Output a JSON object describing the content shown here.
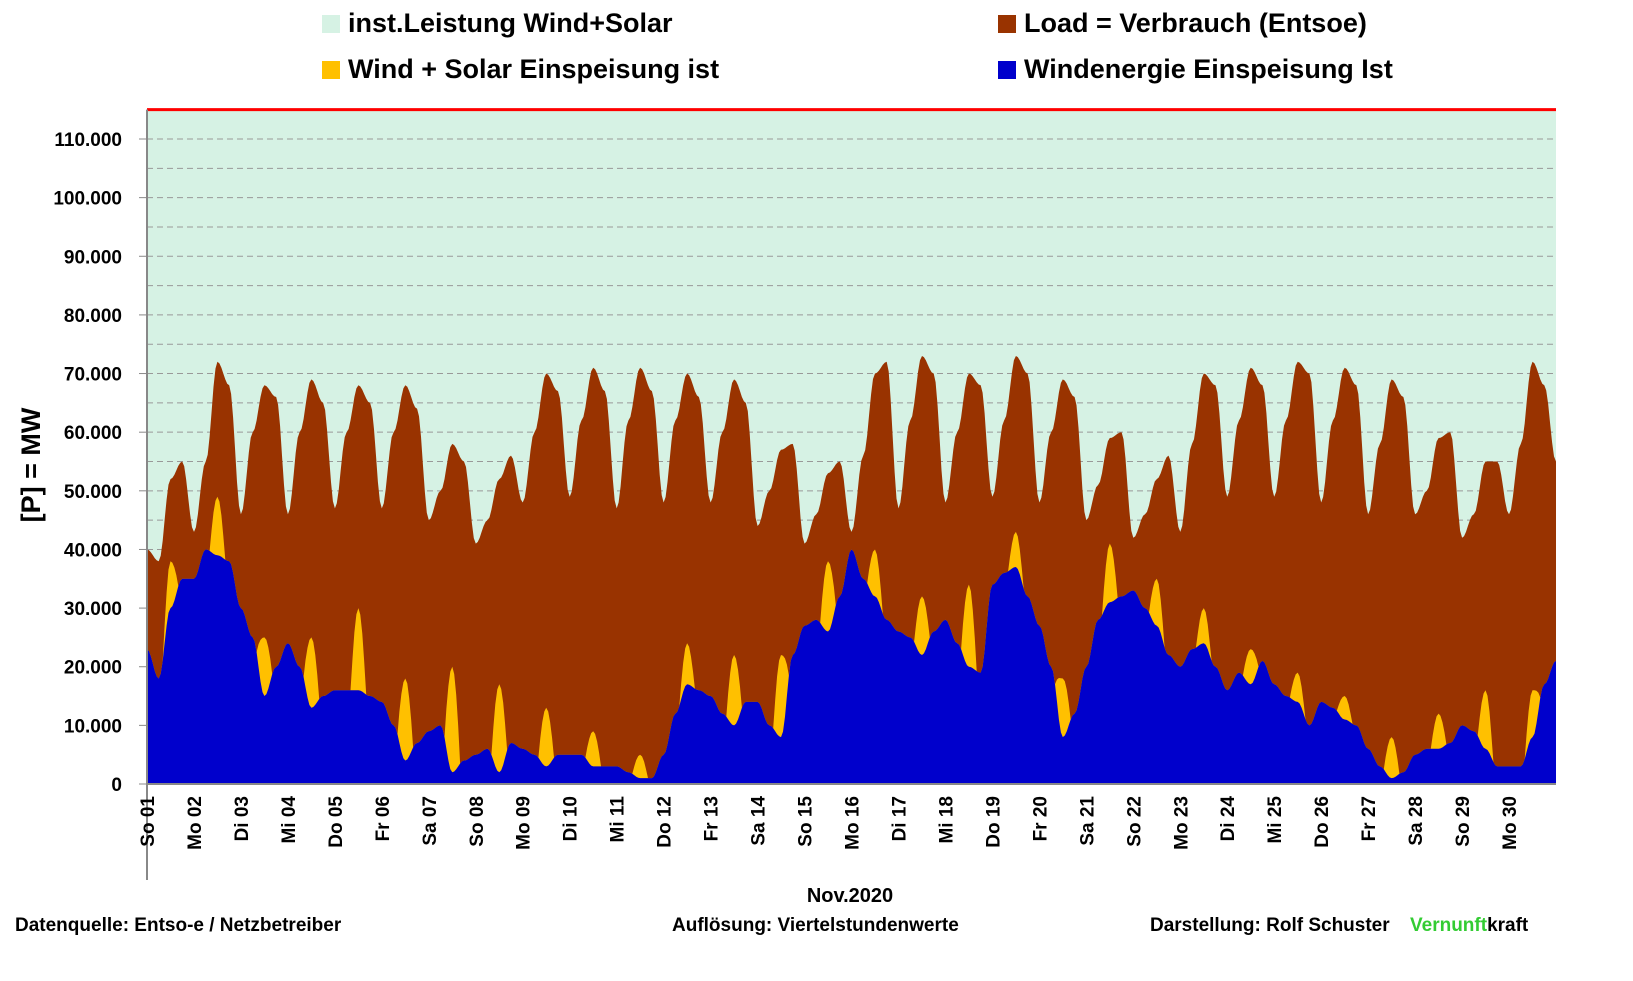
{
  "chart_data": {
    "type": "area",
    "legend": [
      {
        "label": "inst.Leistung Wind+Solar",
        "color": "#d6f2e4"
      },
      {
        "label": "Load =  Verbrauch (Entsoe)",
        "color": "#993300"
      },
      {
        "label": "Wind + Solar Einspeisung ist",
        "color": "#ffc000"
      },
      {
        "label": "Windenergie Einspeisung Ist",
        "color": "#0000cc"
      }
    ],
    "installed_color": "#ff0000",
    "installed_capacity_mw": 115000,
    "ylabel": "[P] = MW",
    "xlabel": "Nov.2020",
    "ylim": [
      0,
      115000
    ],
    "yticks": [
      0,
      10000,
      20000,
      30000,
      40000,
      50000,
      60000,
      70000,
      80000,
      90000,
      100000,
      110000
    ],
    "ytick_labels": [
      "0",
      "10.000",
      "20.000",
      "30.000",
      "40.000",
      "50.000",
      "60.000",
      "70.000",
      "80.000",
      "90.000",
      "100.000",
      "110.000"
    ],
    "xtick_labels": [
      "So 01",
      "Mo 02",
      "Di 03",
      "Mi 04",
      "Do 05",
      "Fr 06",
      "Sa 07",
      "So 08",
      "Mo 09",
      "Di 10",
      "Mi 11",
      "Do 12",
      "Fr 13",
      "Sa 14",
      "So 15",
      "Mo 16",
      "Di 17",
      "Mi 18",
      "Do 19",
      "Fr 20",
      "Sa 21",
      "So 22",
      "Mo 23",
      "Di 24",
      "Mi 25",
      "Do 26",
      "Fr 27",
      "Sa 28",
      "So 29",
      "Mo 30"
    ],
    "resolution_note": "values in thousand MW at 00,06,12,18 h per day; solar = daily midday peak",
    "load_kmw": [
      40,
      38,
      52,
      55,
      43,
      55,
      72,
      68,
      46,
      60,
      68,
      66,
      46,
      60,
      69,
      65,
      47,
      60,
      68,
      65,
      47,
      60,
      68,
      64,
      45,
      50,
      58,
      55,
      41,
      45,
      52,
      56,
      48,
      60,
      70,
      67,
      49,
      62,
      71,
      67,
      47,
      62,
      71,
      67,
      48,
      62,
      70,
      66,
      48,
      60,
      69,
      65,
      44,
      50,
      57,
      58,
      41,
      46,
      53,
      55,
      43,
      56,
      70,
      72,
      47,
      62,
      73,
      70,
      48,
      60,
      70,
      68,
      49,
      62,
      73,
      70,
      48,
      60,
      69,
      66,
      45,
      51,
      59,
      60,
      42,
      46,
      52,
      56,
      43,
      58,
      70,
      68,
      49,
      62,
      71,
      68,
      49,
      62,
      72,
      70,
      48,
      62,
      71,
      68,
      46,
      58,
      69,
      66,
      46,
      50,
      59,
      60,
      42,
      46,
      55,
      55,
      46,
      58,
      72,
      68,
      55
    ],
    "wind_kmw": [
      23,
      18,
      30,
      35,
      35,
      40,
      39,
      38,
      30,
      25,
      15,
      20,
      24,
      20,
      13,
      15,
      16,
      16,
      16,
      15,
      14,
      10,
      4,
      7,
      9,
      10,
      2,
      4,
      5,
      6,
      2,
      7,
      6,
      5,
      3,
      5,
      5,
      5,
      3,
      3,
      3,
      2,
      1,
      1,
      5,
      12,
      17,
      16,
      15,
      12,
      10,
      14,
      14,
      10,
      8,
      22,
      27,
      28,
      26,
      32,
      40,
      35,
      32,
      28,
      26,
      25,
      22,
      26,
      28,
      24,
      20,
      19,
      34,
      36,
      37,
      32,
      27,
      20,
      8,
      12,
      20,
      28,
      31,
      32,
      33,
      30,
      27,
      22,
      20,
      23,
      24,
      20,
      16,
      19,
      17,
      21,
      17,
      15,
      14,
      10,
      14,
      13,
      11,
      10,
      6,
      3,
      1,
      2,
      5,
      6,
      6,
      7,
      10,
      9,
      6,
      3,
      3,
      3,
      8,
      17,
      21
    ],
    "solar_peak_kmw": [
      8,
      10,
      10,
      12,
      14,
      14,
      18,
      15,
      10,
      6,
      4,
      7,
      12,
      14,
      12,
      8,
      10,
      14,
      6,
      10,
      10,
      8,
      6,
      6,
      5,
      4,
      7,
      6,
      10,
      8
    ]
  },
  "footer": {
    "source": "Datenquelle:  Entso-e  / Netzbetreiber",
    "resolution": "Auflösung: Viertelstundenwerte",
    "author": "Darstellung:  Rolf Schuster",
    "brand_green": "Vernunft",
    "brand_black": "kraft"
  }
}
